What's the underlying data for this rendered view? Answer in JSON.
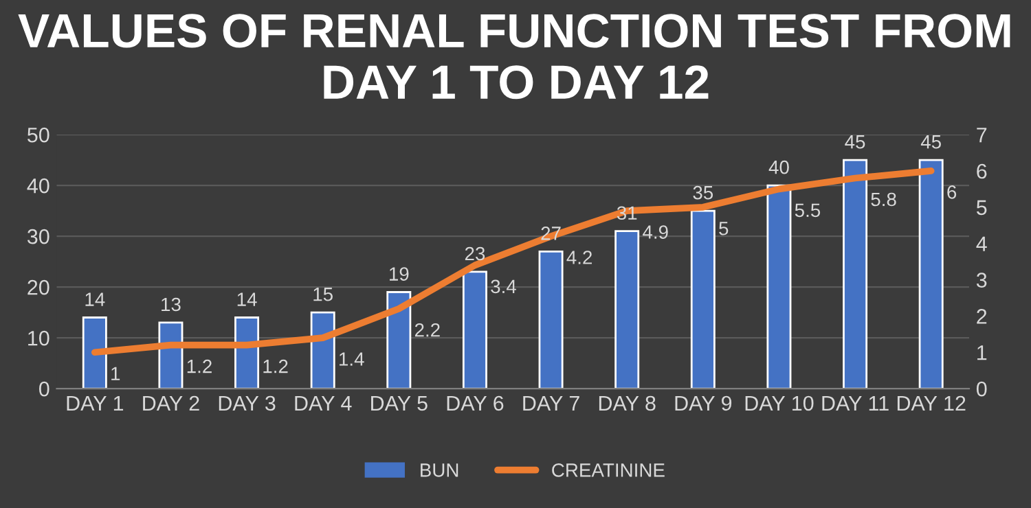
{
  "chart_data": {
    "type": "bar",
    "title": "VALUES OF RENAL FUNCTION TEST FROM DAY 1 TO DAY 12",
    "categories": [
      "DAY 1",
      "DAY 2",
      "DAY 3",
      "DAY 4",
      "DAY 5",
      "DAY 6",
      "DAY 7",
      "DAY 8",
      "DAY 9",
      "DAY 10",
      "DAY 11",
      "DAY 12"
    ],
    "series": [
      {
        "name": "BUN",
        "type": "bar",
        "color": "#4472c4",
        "values": [
          14,
          13,
          14,
          15,
          19,
          23,
          27,
          31,
          35,
          40,
          45,
          45
        ]
      },
      {
        "name": "CREATININE",
        "type": "line",
        "axis": "y2",
        "color": "#ed7d31",
        "values": [
          1,
          1.2,
          1.2,
          1.4,
          2.2,
          3.4,
          4.2,
          4.9,
          5,
          5.5,
          5.8,
          6
        ]
      }
    ],
    "ylim": [
      0,
      50
    ],
    "yticks": [
      0,
      10,
      20,
      30,
      40,
      50
    ],
    "y2lim": [
      0,
      7
    ],
    "y2ticks": [
      0,
      1,
      2,
      3,
      4,
      5,
      6,
      7
    ],
    "grid": "y",
    "legend": "bottom",
    "data_labels": true,
    "marker": "none",
    "line_style": "solid"
  }
}
